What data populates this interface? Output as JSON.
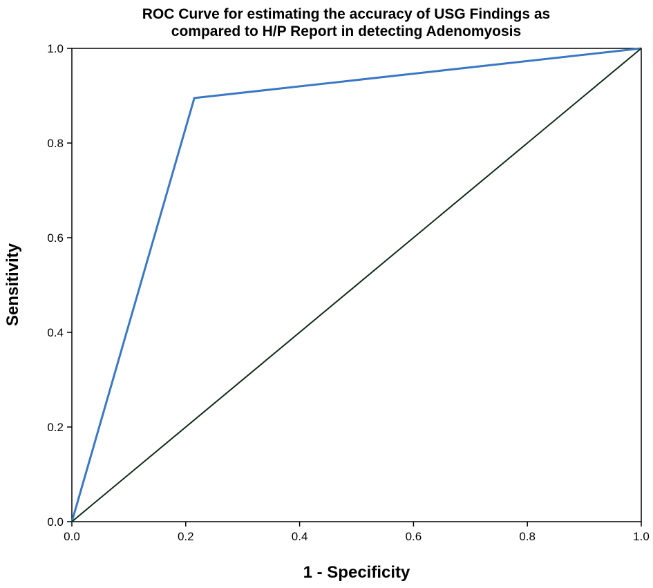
{
  "chart_data": {
    "type": "line",
    "title": "ROC Curve for estimating the accuracy of USG Findings as",
    "subtitle": "compared to H/P Report in detecting Adenomyosis",
    "xlabel": "1 - Specificity",
    "ylabel": "Sensitivity",
    "xlim": [
      0,
      1
    ],
    "ylim": [
      0,
      1
    ],
    "x_ticks": [
      "0.0",
      "0.2",
      "0.4",
      "0.6",
      "0.8",
      "1.0"
    ],
    "y_ticks": [
      "0.0",
      "0.2",
      "0.4",
      "0.6",
      "0.8",
      "1.0"
    ],
    "grid": false,
    "legend": "none",
    "series": [
      {
        "color": "#3a78c2",
        "x": [
          0.0,
          0.215,
          1.0
        ],
        "y": [
          0.0,
          0.895,
          1.0
        ]
      },
      {
        "color": "#0f2a14",
        "x": [
          0.0,
          1.0
        ],
        "y": [
          0.0,
          1.0
        ]
      }
    ]
  }
}
